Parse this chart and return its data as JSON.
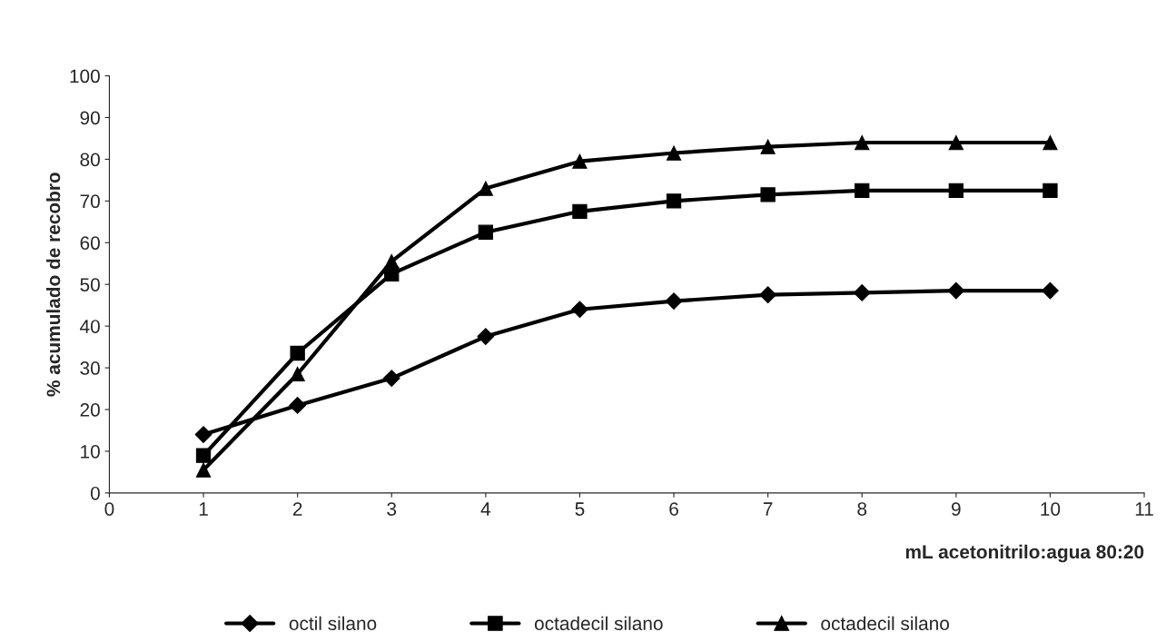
{
  "chart_data": {
    "type": "line",
    "xlabel": "mL acetonitrilo:agua 80:20",
    "ylabel": "% acumulado de recobro",
    "x": [
      1,
      2,
      3,
      4,
      5,
      6,
      7,
      8,
      9,
      10
    ],
    "series": [
      {
        "name": "octil silano",
        "color": "#000000",
        "marker": "diamond",
        "values": [
          14,
          21,
          27.5,
          37.5,
          44,
          46,
          47.5,
          48,
          48.5,
          48.5
        ]
      },
      {
        "name": "octadecil silano",
        "color": "#000000",
        "marker": "square",
        "values": [
          9,
          33.5,
          52.5,
          62.5,
          67.5,
          70,
          71.5,
          72.5,
          72.5,
          72.5
        ]
      },
      {
        "name": "octadecil silano",
        "color": "#000000",
        "marker": "triangle",
        "values": [
          5.5,
          28.5,
          55.5,
          73,
          79.5,
          81.5,
          83,
          84,
          84,
          84
        ]
      }
    ],
    "xlim": [
      0,
      11
    ],
    "xticks": [
      0,
      1,
      2,
      3,
      4,
      5,
      6,
      7,
      8,
      9,
      10,
      11
    ],
    "ylim": [
      0,
      100
    ],
    "yticks": [
      0,
      10,
      20,
      30,
      40,
      50,
      60,
      70,
      80,
      90,
      100
    ],
    "grid": false,
    "legend": "bottom",
    "line_style": "solid"
  }
}
